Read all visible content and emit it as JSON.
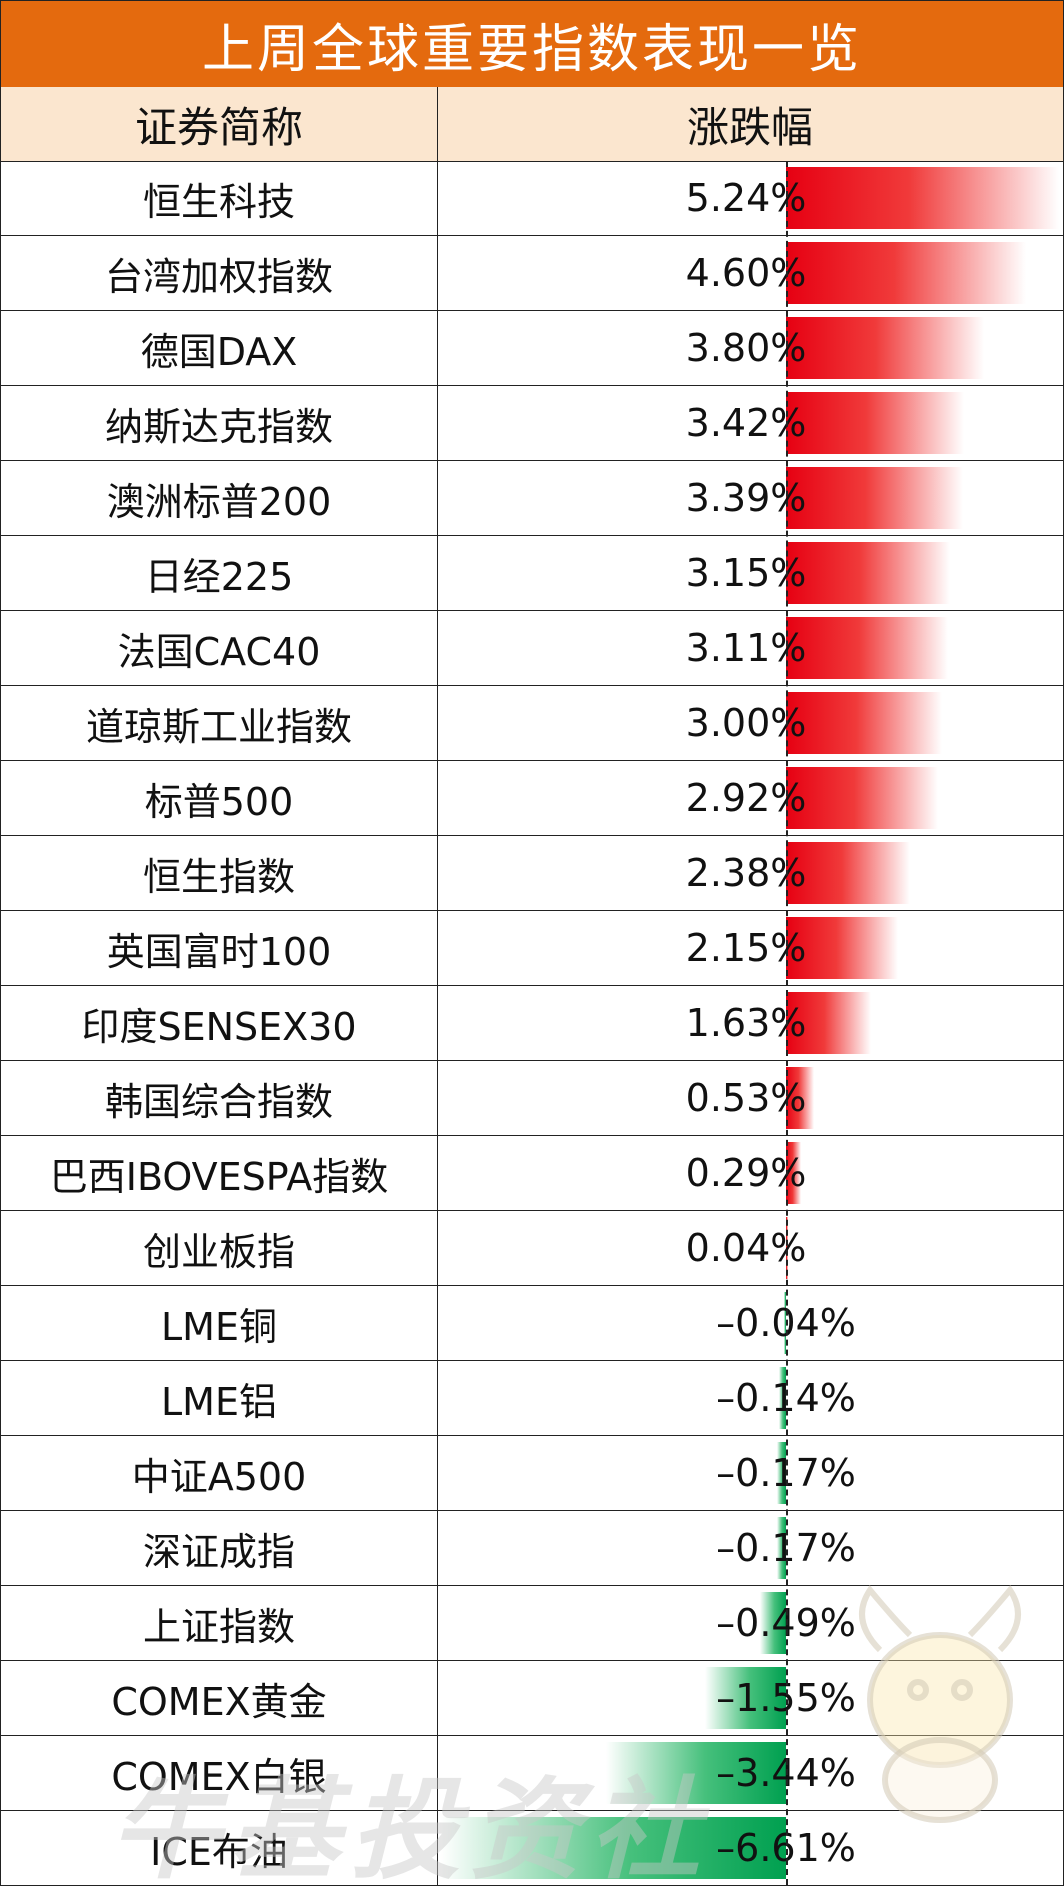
{
  "title": "上周全球重要指数表现一览",
  "header": {
    "name_col": "证券简称",
    "change_col": "涨跌幅"
  },
  "watermark": "牛基投资社",
  "colors": {
    "title_bg": "#e46a0e",
    "header_bg": "#fbe6cf",
    "positive": "#e60012",
    "negative": "#00a050"
  },
  "chart_data": {
    "type": "bar",
    "orientation": "horizontal",
    "unit": "%",
    "categories": [
      "恒生科技",
      "台湾加权指数",
      "德国DAX",
      "纳斯达克指数",
      "澳洲标普200",
      "日经225",
      "法国CAC40",
      "道琼斯工业指数",
      "标普500",
      "恒生指数",
      "英国富时100",
      "印度SENSEX30",
      "韩国综合指数",
      "巴西IBOVESPA指数",
      "创业板指",
      "LME铜",
      "LME铝",
      "中证A500",
      "深证成指",
      "上证指数",
      "COMEX黄金",
      "COMEX白银",
      "ICE布油"
    ],
    "values": [
      5.24,
      4.6,
      3.8,
      3.42,
      3.39,
      3.15,
      3.11,
      3.0,
      2.92,
      2.38,
      2.15,
      1.63,
      0.53,
      0.29,
      0.04,
      -0.04,
      -0.14,
      -0.17,
      -0.17,
      -0.49,
      -1.55,
      -3.44,
      -6.61
    ],
    "labels": [
      "5.24%",
      "4.60%",
      "3.80%",
      "3.42%",
      "3.39%",
      "3.15%",
      "3.11%",
      "3.00%",
      "2.92%",
      "2.38%",
      "2.15%",
      "1.63%",
      "0.53%",
      "0.29%",
      "0.04%",
      "–0.04%",
      "–0.14%",
      "–0.17%",
      "–0.17%",
      "–0.49%",
      "–1.55%",
      "–3.44%",
      "–6.61%"
    ]
  }
}
